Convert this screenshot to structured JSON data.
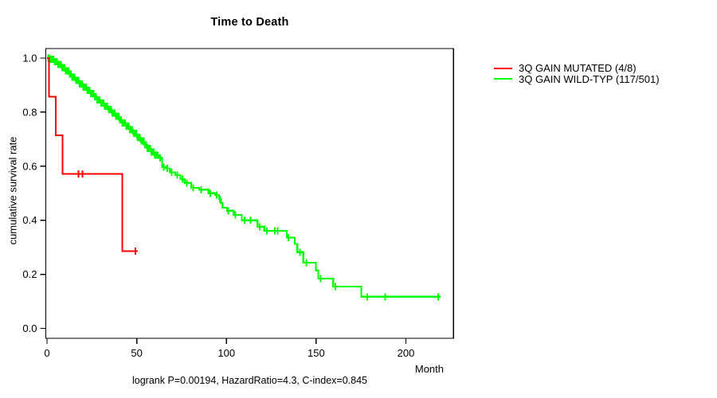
{
  "title": "Time to Death",
  "footer": "logrank P=0.00194, HazardRatio=4.3, C-index=0.845",
  "y_axis": {
    "label": "cumulative survival rate",
    "ticks": [
      "0.0",
      "0.2",
      "0.4",
      "0.6",
      "0.8",
      "1.0"
    ],
    "tick_values": [
      0,
      0.2,
      0.4,
      0.6,
      0.8,
      1.0
    ]
  },
  "x_axis": {
    "label": "Month",
    "ticks": [
      "0",
      "50",
      "100",
      "150",
      "200"
    ],
    "tick_values": [
      0,
      50,
      100,
      150,
      200
    ]
  },
  "legend": {
    "items": [
      {
        "id": "mutated",
        "label": "3Q GAIN MUTATED (4/8)",
        "color": "#ff0000"
      },
      {
        "id": "wildtype",
        "label": "3Q GAIN WILD-TYP (117/501)",
        "color": "#00ff00"
      }
    ]
  },
  "chart_data": {
    "type": "line",
    "subtype": "kaplan-meier-step",
    "title": "Time to Death",
    "xlabel": "Month",
    "ylabel": "cumulative survival rate",
    "xlim": [
      0,
      226
    ],
    "ylim": [
      0,
      1.0
    ],
    "grid": false,
    "legend_position": "right",
    "annotation": "logrank P=0.00194, HazardRatio=4.3, C-index=0.845",
    "series": [
      {
        "id": "mutated",
        "name": "3Q GAIN MUTATED (4/8)",
        "color": "#ff0000",
        "events": "4/8",
        "steps": [
          [
            0,
            1.0
          ],
          [
            1.1,
            0.857
          ],
          [
            4.9,
            0.714
          ],
          [
            8.6,
            0.571
          ],
          [
            41.9,
            0.286
          ]
        ],
        "end_month": 50.6,
        "censor_months": [
          17.5,
          19.7,
          49.3
        ]
      },
      {
        "id": "wildtype",
        "name": "3Q GAIN WILD-TYP (117/501)",
        "color": "#00ff00",
        "events": "117/501",
        "steps": [
          [
            0,
            1.0
          ],
          [
            2,
            0.996
          ],
          [
            4,
            0.987
          ],
          [
            6,
            0.976
          ],
          [
            8,
            0.965
          ],
          [
            10,
            0.953
          ],
          [
            12,
            0.941
          ],
          [
            14,
            0.929
          ],
          [
            16,
            0.917
          ],
          [
            18,
            0.905
          ],
          [
            20,
            0.893
          ],
          [
            22,
            0.881
          ],
          [
            24,
            0.869
          ],
          [
            26,
            0.857
          ],
          [
            28,
            0.845
          ],
          [
            30,
            0.833
          ],
          [
            32,
            0.822
          ],
          [
            34,
            0.81
          ],
          [
            36,
            0.797
          ],
          [
            38,
            0.785
          ],
          [
            40,
            0.772
          ],
          [
            42,
            0.76
          ],
          [
            44,
            0.748
          ],
          [
            46,
            0.735
          ],
          [
            48,
            0.721
          ],
          [
            50,
            0.707
          ],
          [
            52,
            0.693
          ],
          [
            54,
            0.679
          ],
          [
            56,
            0.665
          ],
          [
            58,
            0.652
          ],
          [
            60,
            0.641
          ],
          [
            62,
            0.631
          ],
          [
            64.1,
            0.597
          ],
          [
            66.3,
            0.592
          ],
          [
            68.5,
            0.577
          ],
          [
            71.5,
            0.567
          ],
          [
            74.4,
            0.552
          ],
          [
            76.7,
            0.538
          ],
          [
            80.4,
            0.52
          ],
          [
            84.8,
            0.513
          ],
          [
            90,
            0.5
          ],
          [
            93.7,
            0.493
          ],
          [
            95.9,
            0.479
          ],
          [
            96.9,
            0.464
          ],
          [
            97.8,
            0.446
          ],
          [
            100.3,
            0.435
          ],
          [
            104,
            0.42
          ],
          [
            108.5,
            0.4
          ],
          [
            117.3,
            0.376
          ],
          [
            121.1,
            0.361
          ],
          [
            133.6,
            0.336
          ],
          [
            138.1,
            0.312
          ],
          [
            139.5,
            0.282
          ],
          [
            142.8,
            0.243
          ],
          [
            149.9,
            0.214
          ],
          [
            151.1,
            0.184
          ],
          [
            159.5,
            0.155
          ],
          [
            175.1,
            0.117
          ]
        ],
        "end_month": 219.3,
        "censor_months": [
          0.7,
          1.4,
          2.1,
          2.8,
          3.5,
          4.2,
          4.9,
          5.6,
          6.3,
          7,
          7.7,
          8.4,
          9.1,
          9.8,
          10.5,
          11.2,
          11.9,
          12.6,
          13.3,
          14,
          14.7,
          15.4,
          16.1,
          16.8,
          17.5,
          18.2,
          18.9,
          19.6,
          20.3,
          21,
          21.7,
          22.4,
          23.1,
          23.8,
          24.5,
          25.2,
          25.9,
          26.6,
          27.3,
          28,
          28.7,
          29.4,
          30.1,
          30.8,
          31.5,
          32.2,
          32.9,
          33.6,
          34.3,
          35,
          35.7,
          36.4,
          37.1,
          37.8,
          38.5,
          39.2,
          39.9,
          40.6,
          41.3,
          42,
          42.7,
          43.4,
          44.1,
          44.8,
          45.5,
          46.2,
          46.9,
          47.6,
          48.3,
          49,
          49.7,
          50.4,
          51.1,
          51.8,
          52.5,
          53.2,
          53.9,
          54.6,
          55.3,
          56,
          56.7,
          57.4,
          58.1,
          58.8,
          59.5,
          60.2,
          60.9,
          61.6,
          63,
          65,
          67,
          69.5,
          72.5,
          75.5,
          78,
          81.5,
          86,
          91,
          94.5,
          96.3,
          101,
          105,
          110,
          113.5,
          118.5,
          122.5,
          127,
          128.5,
          134.5,
          141,
          144.5,
          152.5,
          160.6,
          178.4,
          188.4,
          218
        ]
      }
    ]
  }
}
